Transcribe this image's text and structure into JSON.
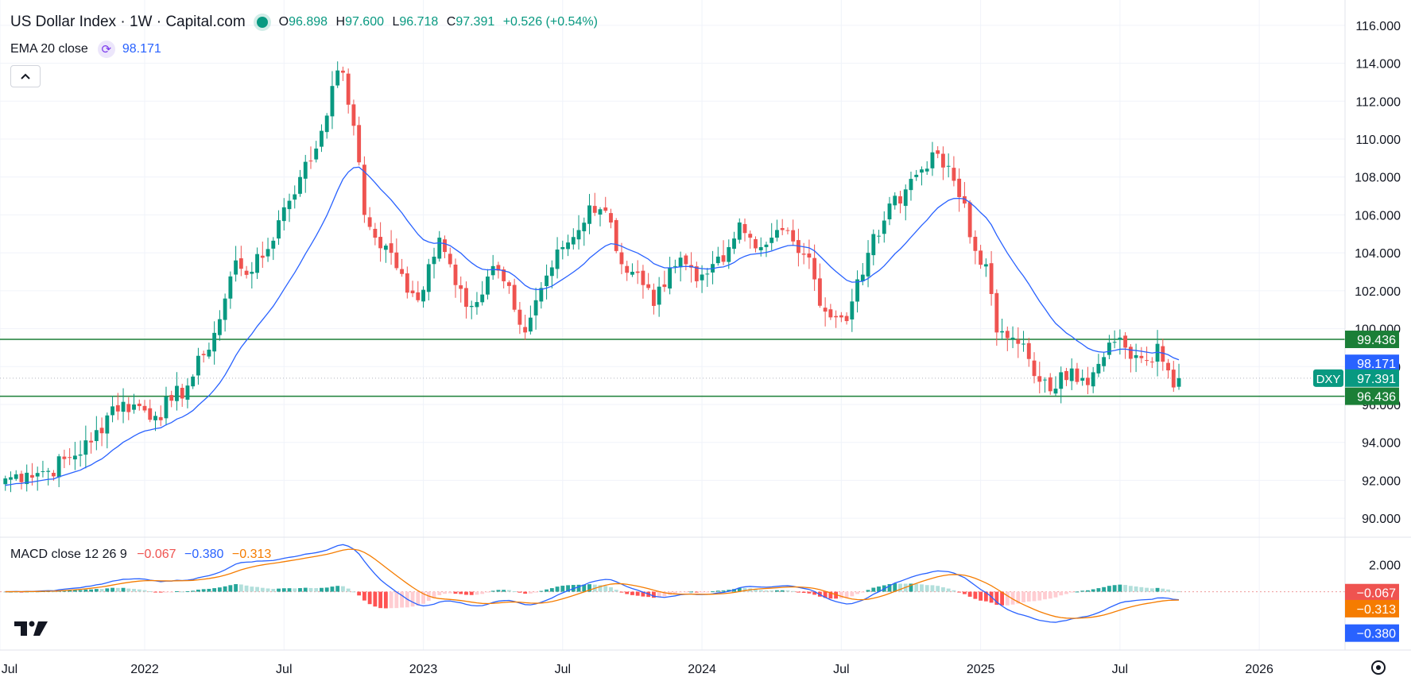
{
  "header": {
    "title": "US Dollar Index · 1W · Capital.com",
    "ohlc": {
      "o_label": "O",
      "o": "96.898",
      "h_label": "H",
      "h": "97.600",
      "l_label": "L",
      "l": "96.718",
      "c_label": "C",
      "c": "97.391",
      "change": "+0.526 (+0.54%)"
    }
  },
  "ema": {
    "label": "EMA 20 close",
    "value": "98.171"
  },
  "macd": {
    "label": "MACD close 12 26 9",
    "hist": "−0.067",
    "macd": "−0.380",
    "signal": "−0.313"
  },
  "colors": {
    "up": "#089981",
    "down": "#ef5350",
    "ema": "#2962ff",
    "macd": "#2962ff",
    "signal": "#f57c00",
    "level": "#1b7f37",
    "grid": "#f0f3fa"
  },
  "chart_data": [
    {
      "type": "candlestick",
      "title": "US Dollar Index · 1W · Capital.com",
      "symbol": "DXY",
      "ylim": [
        89,
        117
      ],
      "y_ticks": [
        "90.000",
        "92.000",
        "94.000",
        "96.000",
        "98.000",
        "100.000",
        "102.000",
        "104.000",
        "106.000",
        "108.000",
        "110.000",
        "112.000",
        "114.000",
        "116.000"
      ],
      "x_ticks": [
        {
          "label": "Jul",
          "w": -1
        },
        {
          "label": "2022",
          "w": 26
        },
        {
          "label": "Jul",
          "w": 52
        },
        {
          "label": "2023",
          "w": 78
        },
        {
          "label": "Jul",
          "w": 104
        },
        {
          "label": "2024",
          "w": 130
        },
        {
          "label": "Jul",
          "w": 156
        },
        {
          "label": "2025",
          "w": 182
        },
        {
          "label": "Jul",
          "w": 208
        },
        {
          "label": "2026",
          "w": 234
        }
      ],
      "x_range_weeks": [
        -1,
        250
      ],
      "anchors": [
        {
          "w": 0,
          "v": 92.1
        },
        {
          "w": 4,
          "v": 92.4
        },
        {
          "w": 8,
          "v": 92.5
        },
        {
          "w": 12,
          "v": 93.2
        },
        {
          "w": 16,
          "v": 94.0
        },
        {
          "w": 20,
          "v": 95.9
        },
        {
          "w": 24,
          "v": 96.0
        },
        {
          "w": 28,
          "v": 95.4
        },
        {
          "w": 31,
          "v": 96.2
        },
        {
          "w": 34,
          "v": 97.0
        },
        {
          "w": 37,
          "v": 98.6
        },
        {
          "w": 40,
          "v": 100.5
        },
        {
          "w": 43,
          "v": 103.6
        },
        {
          "w": 46,
          "v": 103.0
        },
        {
          "w": 49,
          "v": 104.2
        },
        {
          "w": 52,
          "v": 106.4
        },
        {
          "w": 55,
          "v": 108.0
        },
        {
          "w": 58,
          "v": 109.5
        },
        {
          "w": 61,
          "v": 112.8
        },
        {
          "w": 63,
          "v": 113.5
        },
        {
          "w": 65,
          "v": 110.7
        },
        {
          "w": 67,
          "v": 106.0
        },
        {
          "w": 69,
          "v": 104.8
        },
        {
          "w": 72,
          "v": 104.0
        },
        {
          "w": 75,
          "v": 101.9
        },
        {
          "w": 77,
          "v": 101.5
        },
        {
          "w": 79,
          "v": 103.4
        },
        {
          "w": 81,
          "v": 104.8
        },
        {
          "w": 83,
          "v": 103.4
        },
        {
          "w": 85,
          "v": 102.1
        },
        {
          "w": 87,
          "v": 101.2
        },
        {
          "w": 89,
          "v": 101.8
        },
        {
          "w": 91,
          "v": 103.3
        },
        {
          "w": 93,
          "v": 102.5
        },
        {
          "w": 95,
          "v": 101.0
        },
        {
          "w": 97,
          "v": 99.8
        },
        {
          "w": 99,
          "v": 101.5
        },
        {
          "w": 101,
          "v": 102.8
        },
        {
          "w": 104,
          "v": 104.3
        },
        {
          "w": 107,
          "v": 105.2
        },
        {
          "w": 109,
          "v": 106.5
        },
        {
          "w": 111,
          "v": 106.3
        },
        {
          "w": 113,
          "v": 105.6
        },
        {
          "w": 115,
          "v": 103.4
        },
        {
          "w": 117,
          "v": 103.0
        },
        {
          "w": 119,
          "v": 102.3
        },
        {
          "w": 121,
          "v": 101.2
        },
        {
          "w": 123,
          "v": 102.2
        },
        {
          "w": 125,
          "v": 103.3
        },
        {
          "w": 127,
          "v": 103.4
        },
        {
          "w": 129,
          "v": 102.5
        },
        {
          "w": 131,
          "v": 102.9
        },
        {
          "w": 133,
          "v": 103.8
        },
        {
          "w": 135,
          "v": 104.3
        },
        {
          "w": 137,
          "v": 105.6
        },
        {
          "w": 139,
          "v": 104.8
        },
        {
          "w": 141,
          "v": 104.3
        },
        {
          "w": 143,
          "v": 104.8
        },
        {
          "w": 145,
          "v": 105.2
        },
        {
          "w": 147,
          "v": 104.6
        },
        {
          "w": 149,
          "v": 103.9
        },
        {
          "w": 151,
          "v": 102.6
        },
        {
          "w": 153,
          "v": 100.9
        },
        {
          "w": 155,
          "v": 100.6
        },
        {
          "w": 157,
          "v": 100.4
        },
        {
          "w": 159,
          "v": 102.6
        },
        {
          "w": 161,
          "v": 104.0
        },
        {
          "w": 163,
          "v": 104.9
        },
        {
          "w": 165,
          "v": 106.6
        },
        {
          "w": 167,
          "v": 106.6
        },
        {
          "w": 169,
          "v": 107.9
        },
        {
          "w": 171,
          "v": 108.4
        },
        {
          "w": 173,
          "v": 109.3
        },
        {
          "w": 175,
          "v": 108.5
        },
        {
          "w": 177,
          "v": 107.8
        },
        {
          "w": 179,
          "v": 106.6
        },
        {
          "w": 181,
          "v": 104.1
        },
        {
          "w": 183,
          "v": 103.4
        },
        {
          "w": 185,
          "v": 99.8
        },
        {
          "w": 187,
          "v": 99.5
        },
        {
          "w": 189,
          "v": 99.2
        },
        {
          "w": 191,
          "v": 98.4
        },
        {
          "w": 193,
          "v": 97.2
        },
        {
          "w": 195,
          "v": 96.7
        },
        {
          "w": 197,
          "v": 97.7
        },
        {
          "w": 199,
          "v": 97.9
        },
        {
          "w": 201,
          "v": 97.4
        },
        {
          "w": 203,
          "v": 97.7
        },
        {
          "w": 205,
          "v": 98.5
        },
        {
          "w": 207,
          "v": 99.3
        },
        {
          "w": 209,
          "v": 99.0
        },
        {
          "w": 211,
          "v": 98.6
        },
        {
          "w": 213,
          "v": 98.3
        },
        {
          "w": 215,
          "v": 99.2
        },
        {
          "w": 217,
          "v": 97.8
        },
        {
          "w": 218,
          "v": 96.9
        },
        {
          "w": 219,
          "v": 97.39
        }
      ],
      "ema20_last": "98.171",
      "last_price": "97.391",
      "levels": [
        {
          "price": 99.436,
          "label": "99.436"
        },
        {
          "price": 96.436,
          "label": "96.436"
        }
      ],
      "price_labels": {
        "ema": "98.171",
        "last": "97.391",
        "symbol": "DXY",
        "upper": "99.436",
        "lower": "96.436"
      }
    },
    {
      "type": "macd",
      "params": "close 12 26 9",
      "ylim": [
        -4.3,
        3.9
      ],
      "y_ticks": [
        "2.000"
      ],
      "last": {
        "hist": "−0.067",
        "macd": "−0.380",
        "signal": "−0.313"
      }
    }
  ]
}
